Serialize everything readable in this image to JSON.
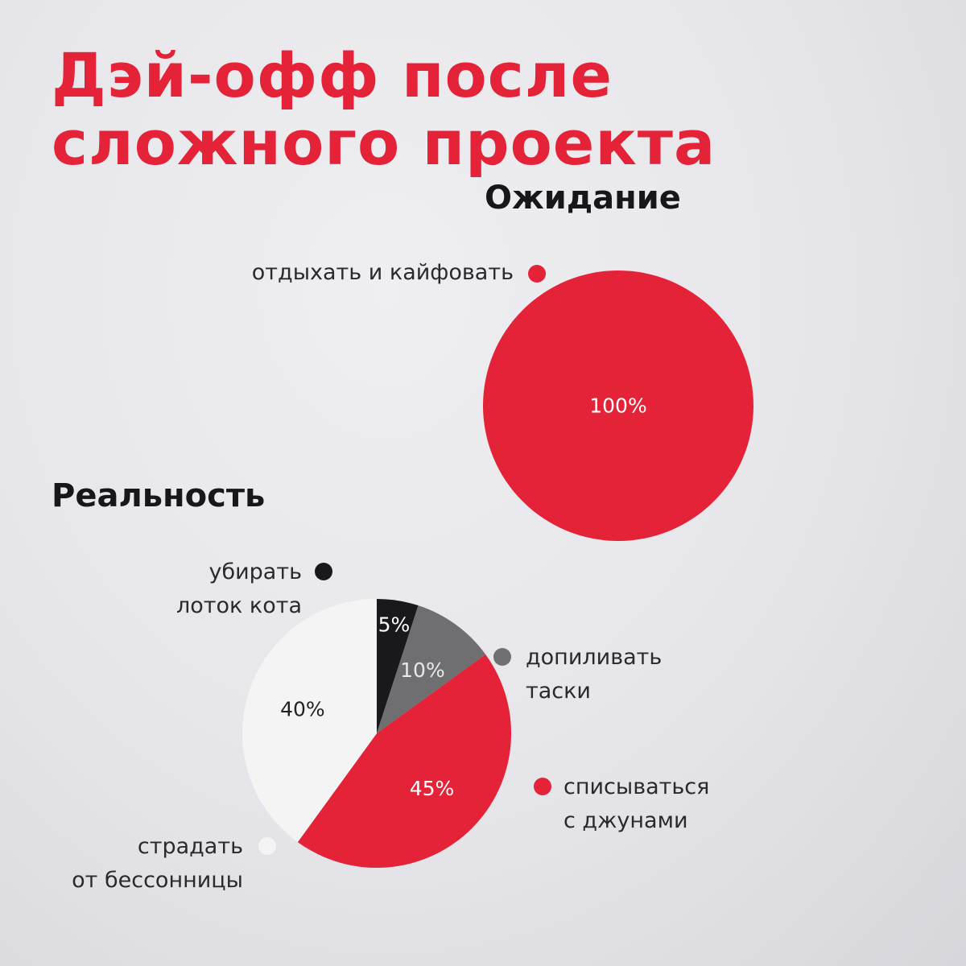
{
  "title": {
    "line1": "Дэй-офф после",
    "line2": "сложного проекта"
  },
  "chart_data": [
    {
      "type": "pie",
      "title": "Ожидание",
      "slices": [
        {
          "label_lines": [
            "отдыхать и кайфовать"
          ],
          "value": 100,
          "value_label": "100%",
          "color": "#e42339"
        }
      ]
    },
    {
      "type": "pie",
      "title": "Реальность",
      "slices": [
        {
          "label_lines": [
            "убирать",
            "лоток кота"
          ],
          "value": 5,
          "value_label": "5%",
          "color": "#19181c"
        },
        {
          "label_lines": [
            "допиливать",
            "таски"
          ],
          "value": 10,
          "value_label": "10%",
          "color": "#6f6f71"
        },
        {
          "label_lines": [
            "списываться",
            "с джунами"
          ],
          "value": 45,
          "value_label": "45%",
          "color": "#e42339"
        },
        {
          "label_lines": [
            "страдать",
            "от бессонницы"
          ],
          "value": 40,
          "value_label": "40%",
          "color": "#f4f4f5"
        }
      ]
    }
  ]
}
